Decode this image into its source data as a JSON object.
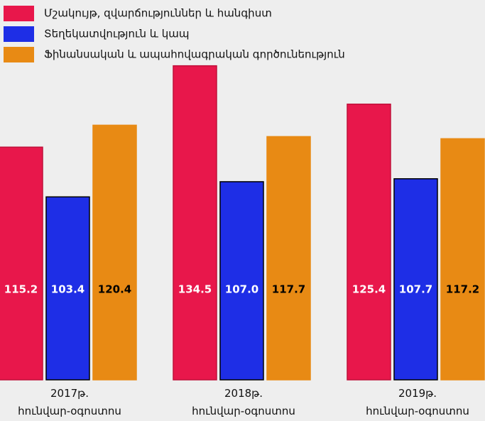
{
  "chart_data": {
    "type": "bar",
    "categories": [
      "2017թ.\nհունվար-օգոստոս",
      "2018թ.\nհունվար-օգոստոս",
      "2019թ.\nհունվար-օգոստոս"
    ],
    "series": [
      {
        "name": "Մշակույթ, զվարճություններ և հանգիստ",
        "color": "#e8174b",
        "border": "#c0103a",
        "label_color": "#ffffff",
        "values": [
          115.2,
          134.5,
          125.4
        ],
        "value_labels": [
          "115.2",
          "134.5",
          "125.4"
        ]
      },
      {
        "name": "Տեղեկատվություն և կապ",
        "color": "#1e2ee6",
        "border": "#000000",
        "label_color": "#ffffff",
        "values": [
          103.4,
          107.0,
          107.7
        ],
        "value_labels": [
          "103.4",
          "107.0",
          "107.7"
        ]
      },
      {
        "name": "Ֆինանսական և ապահովագրական գործունեություն",
        "color": "#e88a14",
        "border": "#e88a14",
        "label_color": "#000000",
        "values": [
          120.4,
          117.7,
          117.2
        ],
        "value_labels": [
          "120.4",
          "117.7",
          "117.2"
        ]
      }
    ],
    "ylim": [
      60,
      140
    ],
    "legend": "top-left"
  }
}
